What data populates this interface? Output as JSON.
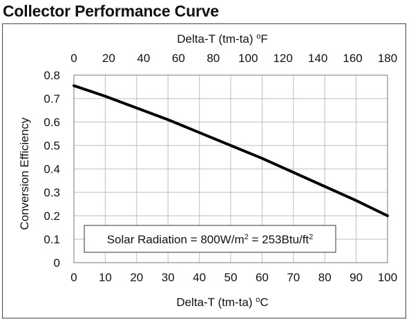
{
  "title": "Collector Performance Curve",
  "chart_data": {
    "type": "line",
    "ylabel": "Conversion Efficiency",
    "xlabel_bottom": {
      "text": "Delta-T (tm-ta) ",
      "sup": "o",
      "unit": "C"
    },
    "xlabel_top": {
      "text": "Delta-T (tm-ta) ",
      "sup": "o",
      "unit": "F"
    },
    "xlim": [
      0,
      100
    ],
    "ylim": [
      0,
      0.8
    ],
    "x_ticks_bottom": [
      "0",
      "10",
      "20",
      "30",
      "40",
      "50",
      "60",
      "70",
      "80",
      "90",
      "100"
    ],
    "x_ticks_top": [
      "0",
      "20",
      "40",
      "60",
      "80",
      "100",
      "120",
      "140",
      "160",
      "180"
    ],
    "y_ticks": [
      "0",
      "0.1",
      "0.2",
      "0.3",
      "0.4",
      "0.5",
      "0.6",
      "0.7",
      "0.8"
    ],
    "grid": true,
    "series": [
      {
        "x": [
          0,
          10,
          20,
          30,
          40,
          50,
          60,
          70,
          80,
          90,
          100
        ],
        "y": [
          0.755,
          0.71,
          0.66,
          0.61,
          0.555,
          0.5,
          0.445,
          0.385,
          0.325,
          0.265,
          0.2
        ],
        "color": "#000000"
      }
    ],
    "annotation": {
      "prefix": "Solar Radiation = 800W/m",
      "sup1": "2",
      "middle": " = 253Btu/ft",
      "sup2": "2"
    }
  }
}
